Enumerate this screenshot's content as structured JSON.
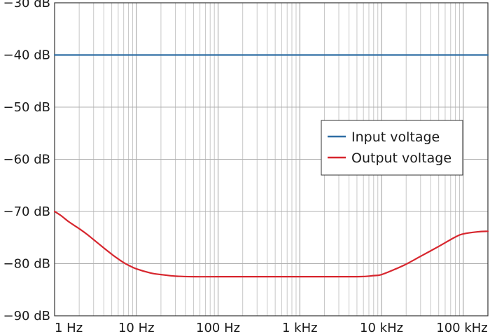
{
  "chart_data": {
    "type": "line",
    "xscale": "log",
    "xlim": [
      1,
      200000
    ],
    "ylim": [
      -90,
      -30
    ],
    "grid": true,
    "legend_position": "right-middle",
    "x_ticks": [
      {
        "value": 1,
        "label": "1 Hz"
      },
      {
        "value": 10,
        "label": "10 Hz"
      },
      {
        "value": 100,
        "label": "100 Hz"
      },
      {
        "value": 1000,
        "label": "1 kHz"
      },
      {
        "value": 10000,
        "label": "10 kHz"
      },
      {
        "value": 100000,
        "label": "100 kHz"
      }
    ],
    "y_ticks": [
      {
        "value": -30,
        "label": "−30 dB"
      },
      {
        "value": -40,
        "label": "−40 dB"
      },
      {
        "value": -50,
        "label": "−50 dB"
      },
      {
        "value": -60,
        "label": "−60 dB"
      },
      {
        "value": -70,
        "label": "−70 dB"
      },
      {
        "value": -80,
        "label": "−80 dB"
      },
      {
        "value": -90,
        "label": "−90 dB"
      }
    ],
    "series": [
      {
        "name": "Input voltage",
        "color": "#2e6da4",
        "points": [
          [
            1,
            -40
          ],
          [
            200000,
            -40
          ]
        ]
      },
      {
        "name": "Output voltage",
        "color": "#d7262e",
        "points": [
          [
            1,
            -70.0
          ],
          [
            1.2,
            -70.8
          ],
          [
            1.5,
            -72.0
          ],
          [
            2,
            -73.3
          ],
          [
            2.5,
            -74.4
          ],
          [
            3,
            -75.4
          ],
          [
            4,
            -77.0
          ],
          [
            5,
            -78.2
          ],
          [
            6,
            -79.1
          ],
          [
            7,
            -79.8
          ],
          [
            8,
            -80.3
          ],
          [
            10,
            -81.0
          ],
          [
            15,
            -81.8
          ],
          [
            20,
            -82.1
          ],
          [
            30,
            -82.4
          ],
          [
            50,
            -82.5
          ],
          [
            100,
            -82.5
          ],
          [
            1000,
            -82.5
          ],
          [
            5000,
            -82.5
          ],
          [
            8000,
            -82.3
          ],
          [
            10000,
            -82.1
          ],
          [
            15000,
            -81.0
          ],
          [
            20000,
            -80.1
          ],
          [
            30000,
            -78.6
          ],
          [
            50000,
            -76.7
          ],
          [
            80000,
            -74.9
          ],
          [
            100000,
            -74.3
          ],
          [
            150000,
            -73.9
          ],
          [
            200000,
            -73.8
          ]
        ]
      }
    ]
  }
}
